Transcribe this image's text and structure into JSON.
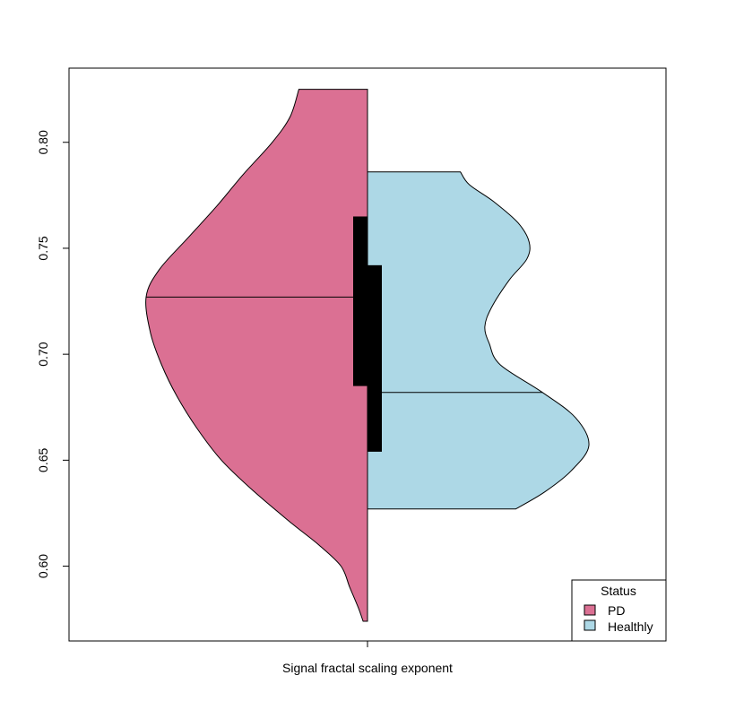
{
  "chart_data": {
    "type": "split-violin",
    "title": "",
    "xlabel": "Signal fractal scaling exponent",
    "ylabel": "",
    "ylim": [
      0.5647,
      0.835
    ],
    "y_ticks": [
      0.6,
      0.65,
      0.7,
      0.75,
      0.8
    ],
    "y_tick_labels": [
      "0.60",
      "0.65",
      "0.70",
      "0.75",
      "0.80"
    ],
    "grid": false,
    "legend": {
      "title": "Status",
      "position": "bottom-right",
      "entries": [
        "PD",
        "Healthly"
      ]
    },
    "series": [
      {
        "name": "PD",
        "side": "left",
        "color": "#db7093",
        "range": [
          0.574,
          0.825
        ],
        "median": 0.727,
        "iqr": [
          0.685,
          0.765
        ],
        "density": [
          [
            0.574,
            0.02
          ],
          [
            0.58,
            0.04
          ],
          [
            0.59,
            0.08
          ],
          [
            0.6,
            0.12
          ],
          [
            0.61,
            0.22
          ],
          [
            0.62,
            0.34
          ],
          [
            0.635,
            0.51
          ],
          [
            0.65,
            0.66
          ],
          [
            0.665,
            0.77
          ],
          [
            0.68,
            0.86
          ],
          [
            0.695,
            0.93
          ],
          [
            0.71,
            0.98
          ],
          [
            0.727,
            1.0
          ],
          [
            0.74,
            0.94
          ],
          [
            0.755,
            0.81
          ],
          [
            0.77,
            0.68
          ],
          [
            0.785,
            0.56
          ],
          [
            0.8,
            0.43
          ],
          [
            0.812,
            0.35
          ],
          [
            0.825,
            0.31
          ]
        ]
      },
      {
        "name": "Healthly",
        "side": "right",
        "color": "#add8e6",
        "range": [
          0.627,
          0.786
        ],
        "median": 0.682,
        "iqr": [
          0.654,
          0.742
        ],
        "density": [
          [
            0.627,
            0.67
          ],
          [
            0.635,
            0.8
          ],
          [
            0.645,
            0.92
          ],
          [
            0.657,
            1.0
          ],
          [
            0.67,
            0.94
          ],
          [
            0.682,
            0.79
          ],
          [
            0.695,
            0.6
          ],
          [
            0.705,
            0.55
          ],
          [
            0.713,
            0.53
          ],
          [
            0.722,
            0.56
          ],
          [
            0.735,
            0.64
          ],
          [
            0.745,
            0.72
          ],
          [
            0.753,
            0.73
          ],
          [
            0.762,
            0.68
          ],
          [
            0.772,
            0.57
          ],
          [
            0.78,
            0.46
          ],
          [
            0.786,
            0.42
          ]
        ]
      }
    ]
  }
}
